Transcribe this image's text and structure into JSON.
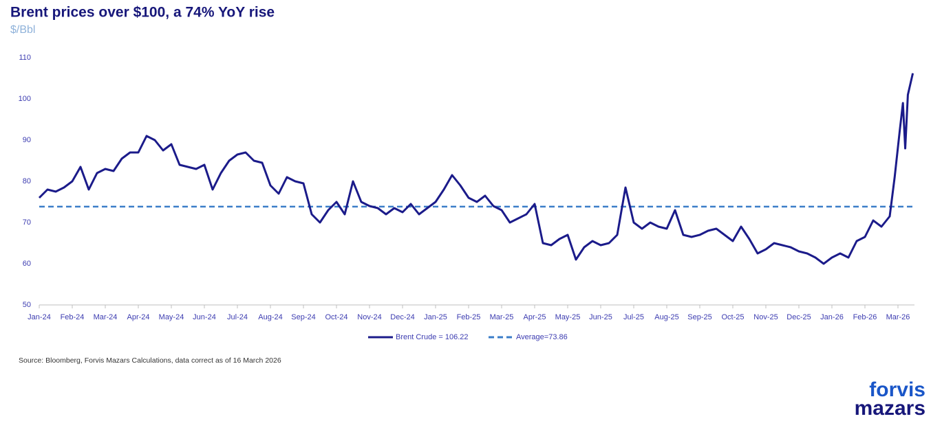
{
  "chart_data": {
    "type": "line",
    "title": "Brent prices over $100, a 74% YoY rise",
    "subtitle": "$/Bbl",
    "source": "Source: Bloomberg, Forvis Mazars Calculations, data correct as of 16 March 2026",
    "brand": [
      "forvis",
      "mazars"
    ],
    "x": [
      0,
      0.25,
      0.5,
      0.75,
      1,
      1.25,
      1.5,
      1.75,
      2,
      2.25,
      2.5,
      2.75,
      3,
      3.25,
      3.5,
      3.75,
      4,
      4.25,
      4.5,
      4.75,
      5,
      5.25,
      5.5,
      5.75,
      6,
      6.25,
      6.5,
      6.75,
      7,
      7.25,
      7.5,
      7.75,
      8,
      8.25,
      8.5,
      8.75,
      9,
      9.25,
      9.5,
      9.75,
      10,
      10.25,
      10.5,
      10.75,
      11,
      11.25,
      11.5,
      11.75,
      12,
      12.25,
      12.5,
      12.75,
      13,
      13.25,
      13.5,
      13.75,
      14,
      14.25,
      14.5,
      14.75,
      15,
      15.25,
      15.5,
      15.75,
      16,
      16.25,
      16.5,
      16.75,
      17,
      17.25,
      17.5,
      17.75,
      18,
      18.25,
      18.5,
      18.75,
      19,
      19.25,
      19.5,
      19.75,
      20,
      20.25,
      20.5,
      20.75,
      21,
      21.25,
      21.5,
      21.75,
      22,
      22.25,
      22.5,
      22.75,
      23,
      23.25,
      23.5,
      23.75,
      24,
      24.25,
      24.5,
      24.75,
      25,
      25.25,
      25.5,
      25.75,
      25.9,
      26.05,
      26.15,
      26.22,
      26.3,
      26.45
    ],
    "series": [
      {
        "name": "Brent Crude = 106.22",
        "color": "#1b1b8a",
        "values": [
          76,
          78,
          77.5,
          78.5,
          80,
          83.5,
          78,
          82,
          83,
          82.5,
          85.5,
          87,
          87,
          91,
          90,
          87.5,
          89,
          84,
          83.5,
          83,
          84,
          78,
          82,
          85,
          86.5,
          87,
          85,
          84.5,
          79,
          77,
          81,
          80,
          79.5,
          72,
          70,
          73,
          75,
          72,
          80,
          75,
          74,
          73.5,
          72,
          73.5,
          72.5,
          74.5,
          72,
          73.5,
          75,
          78,
          81.5,
          79,
          76,
          75,
          76.5,
          74,
          73,
          70,
          71,
          72,
          74.5,
          65,
          64.5,
          66,
          67,
          61,
          64,
          65.5,
          64.5,
          65,
          67,
          78.5,
          70,
          68.5,
          70,
          69,
          68.5,
          73,
          67,
          66.5,
          67,
          68,
          68.5,
          67,
          65.5,
          69,
          66,
          62.5,
          63.5,
          65,
          64.5,
          64,
          63,
          62.5,
          61.5,
          60,
          61.5,
          62.5,
          61.5,
          65.5,
          66.5,
          70.5,
          69,
          71.5,
          81,
          92,
          99,
          88,
          101,
          106.22
        ]
      }
    ],
    "reference_lines": [
      {
        "name": "Average=73.86",
        "value": 73.86,
        "color": "#3a7cc8",
        "dashed": true
      }
    ],
    "xlim": [
      0,
      26.5
    ],
    "xticks": [
      {
        "value": 0,
        "label": "Jan-24"
      },
      {
        "value": 1,
        "label": "Feb-24"
      },
      {
        "value": 2,
        "label": "Mar-24"
      },
      {
        "value": 3,
        "label": "Apr-24"
      },
      {
        "value": 4,
        "label": "May-24"
      },
      {
        "value": 5,
        "label": "Jun-24"
      },
      {
        "value": 6,
        "label": "Jul-24"
      },
      {
        "value": 7,
        "label": "Aug-24"
      },
      {
        "value": 8,
        "label": "Sep-24"
      },
      {
        "value": 9,
        "label": "Oct-24"
      },
      {
        "value": 10,
        "label": "Nov-24"
      },
      {
        "value": 11,
        "label": "Dec-24"
      },
      {
        "value": 12,
        "label": "Jan-25"
      },
      {
        "value": 13,
        "label": "Feb-25"
      },
      {
        "value": 14,
        "label": "Mar-25"
      },
      {
        "value": 15,
        "label": "Apr-25"
      },
      {
        "value": 16,
        "label": "May-25"
      },
      {
        "value": 17,
        "label": "Jun-25"
      },
      {
        "value": 18,
        "label": "Jul-25"
      },
      {
        "value": 19,
        "label": "Aug-25"
      },
      {
        "value": 20,
        "label": "Sep-25"
      },
      {
        "value": 21,
        "label": "Oct-25"
      },
      {
        "value": 22,
        "label": "Nov-25"
      },
      {
        "value": 23,
        "label": "Dec-25"
      },
      {
        "value": 24,
        "label": "Jan-26"
      },
      {
        "value": 25,
        "label": "Feb-26"
      },
      {
        "value": 26,
        "label": "Mar-26"
      }
    ],
    "ylim": [
      50,
      110
    ],
    "yticks": [
      50,
      60,
      70,
      80,
      90,
      100,
      110
    ],
    "grid": false
  }
}
